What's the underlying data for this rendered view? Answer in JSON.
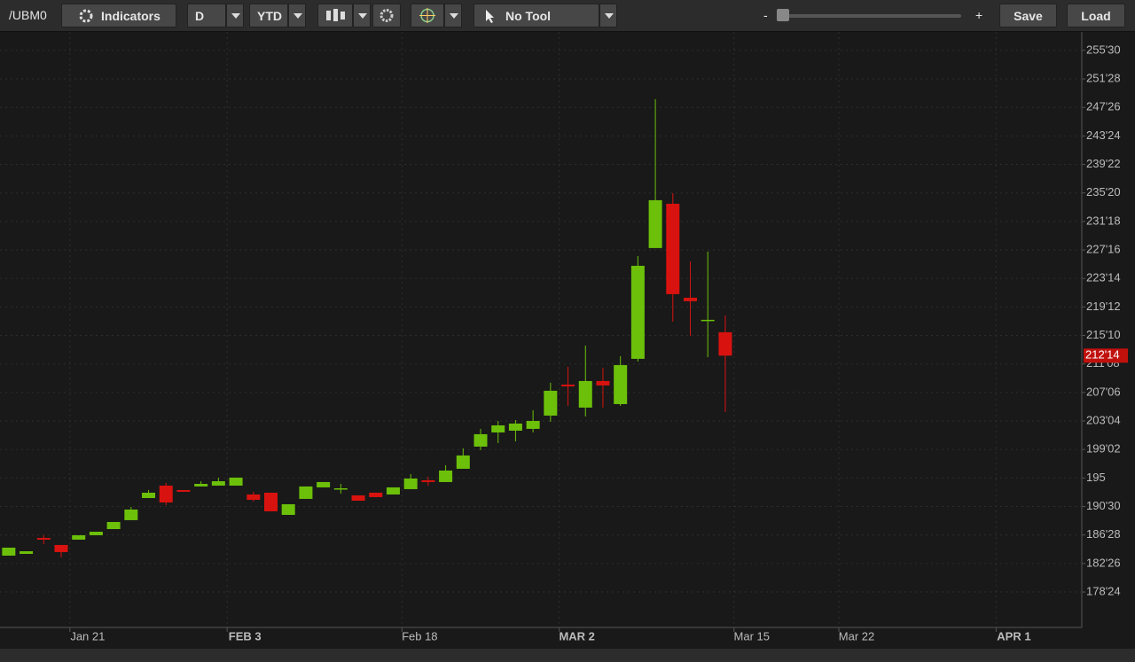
{
  "toolbar": {
    "symbol": "/UBM0",
    "indicators": "Indicators",
    "aggregation": "D",
    "range": "YTD",
    "tool": "No Tool",
    "zoom_out": "-",
    "zoom_in": "+",
    "save": "Save",
    "load": "Load"
  },
  "chart_data": {
    "type": "candlestick",
    "categories": [
      null,
      null,
      null,
      null,
      null,
      null,
      null,
      null,
      null,
      null,
      null,
      null,
      null,
      null,
      null,
      null,
      null,
      null,
      null,
      null,
      null,
      null,
      null,
      null,
      null,
      null,
      null,
      null,
      null,
      null,
      null,
      null,
      null,
      null,
      null,
      null,
      null,
      null,
      null,
      null,
      null,
      null
    ],
    "open": [
      183.93,
      184.18,
      186.46,
      185.45,
      186.21,
      186.84,
      187.72,
      188.99,
      192.14,
      193.91,
      193.28,
      193.79,
      193.91,
      193.91,
      192.65,
      192.9,
      189.74,
      192.02,
      193.66,
      193.41,
      192.52,
      192.9,
      192.65,
      193.41,
      194.67,
      194.42,
      196.31,
      199.47,
      201.49,
      201.74,
      202.0,
      203.89,
      208.31,
      205.03,
      208.82,
      205.53,
      211.98,
      227.77,
      234.08,
      220.69,
      217.41,
      215.77
    ],
    "high": [
      185.07,
      184.56,
      186.84,
      185.45,
      186.84,
      187.34,
      188.73,
      190.88,
      193.28,
      194.29,
      193.28,
      194.54,
      195.05,
      195.05,
      193.03,
      192.9,
      191.26,
      193.79,
      194.42,
      194.16,
      192.52,
      192.9,
      193.66,
      195.55,
      195.18,
      196.82,
      199.22,
      202.0,
      203.13,
      203.26,
      204.65,
      208.57,
      210.84,
      213.87,
      210.71,
      212.36,
      226.63,
      248.99,
      235.6,
      225.87,
      227.26,
      218.17
    ],
    "low": [
      183.93,
      184.18,
      185.57,
      183.68,
      186.21,
      186.84,
      187.72,
      188.99,
      192.14,
      191.13,
      193.03,
      193.79,
      193.91,
      193.91,
      191.64,
      190.25,
      189.74,
      192.02,
      193.66,
      192.77,
      191.76,
      192.27,
      192.65,
      193.41,
      193.91,
      194.42,
      196.31,
      198.97,
      199.98,
      200.23,
      201.49,
      203.01,
      205.28,
      203.77,
      205.03,
      205.28,
      211.6,
      227.77,
      217.28,
      215.26,
      212.23,
      204.4
    ],
    "close": [
      185.07,
      184.56,
      186.21,
      184.44,
      186.84,
      187.34,
      188.73,
      190.5,
      192.9,
      191.51,
      193.03,
      194.16,
      194.54,
      195.05,
      191.89,
      190.25,
      191.26,
      193.79,
      194.42,
      193.53,
      191.76,
      192.27,
      193.66,
      194.92,
      194.42,
      196.06,
      198.21,
      201.24,
      202.5,
      202.76,
      203.13,
      207.43,
      208.06,
      208.82,
      208.19,
      211.09,
      225.24,
      234.59,
      221.2,
      220.19,
      217.54,
      212.44
    ],
    "up_color": "#6cc00a",
    "down_color": "#d8130f",
    "last_price": {
      "value": 212.4375,
      "label": "212'14"
    },
    "xlim": [
      -0.5,
      61.4
    ],
    "xticks": [
      {
        "value": 3.5,
        "label": "Jan 21"
      },
      {
        "value": 12.5,
        "label": "FEB 3"
      },
      {
        "value": 22.5,
        "label": "Feb 18"
      },
      {
        "value": 31.5,
        "label": "MAR 2"
      },
      {
        "value": 41.5,
        "label": "Mar 15"
      },
      {
        "value": 47.5,
        "label": "Mar 22"
      },
      {
        "value": 56.5,
        "label": "APR 1"
      }
    ],
    "ylim": [
      173.7,
      258.7
    ],
    "yticks": [
      {
        "value": 178.75,
        "label": "178'24"
      },
      {
        "value": 182.8125,
        "label": "182'26"
      },
      {
        "value": 186.875,
        "label": "186'28"
      },
      {
        "value": 190.9375,
        "label": "190'30"
      },
      195,
      {
        "value": 199.0625,
        "label": "199'02"
      },
      {
        "value": 203.125,
        "label": "203'04"
      },
      {
        "value": 207.1875,
        "label": "207'06"
      },
      {
        "value": 211.25,
        "label": "211'08"
      },
      {
        "value": 215.3125,
        "label": "215'10"
      },
      {
        "value": 219.375,
        "label": "219'12"
      },
      {
        "value": 223.4375,
        "label": "223'14"
      },
      {
        "value": 227.5,
        "label": "227'16"
      },
      {
        "value": 231.5625,
        "label": "231'18"
      },
      {
        "value": 235.625,
        "label": "235'20"
      },
      {
        "value": 239.6875,
        "label": "239'22"
      },
      {
        "value": 243.75,
        "label": "243'24"
      },
      {
        "value": 247.8125,
        "label": "247'26"
      },
      {
        "value": 251.875,
        "label": "251'28"
      },
      {
        "value": 255.9375,
        "label": "255'30"
      }
    ],
    "grid": true
  }
}
